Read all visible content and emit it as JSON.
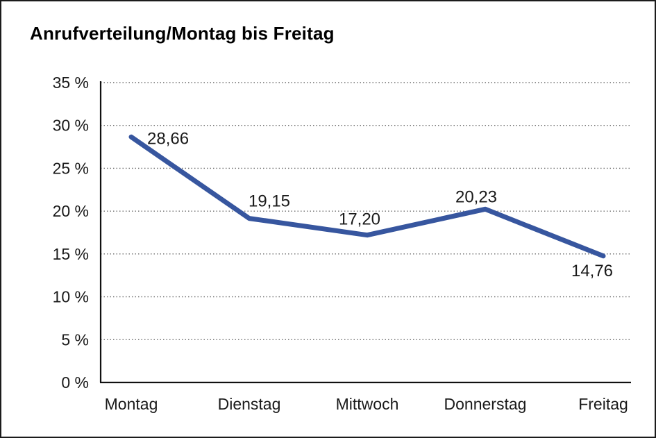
{
  "window": {
    "background": "#ffffff",
    "border_color": "#1b1b1b"
  },
  "chart_data": {
    "type": "line",
    "title": "Anrufverteilung/Montag bis Freitag",
    "categories": [
      "Montag",
      "Dienstag",
      "Mittwoch",
      "Donnerstag",
      "Freitag"
    ],
    "series": [
      {
        "name": "Anrufverteilung",
        "values": [
          28.66,
          19.15,
          17.2,
          20.23,
          14.76
        ]
      }
    ],
    "value_labels": [
      "28,66",
      "19,15",
      "17,20",
      "20,23",
      "14,76"
    ],
    "xlabel": "",
    "ylabel": "",
    "ylim": [
      0,
      35
    ],
    "ytick_step": 5,
    "ytick_labels": [
      "0 %",
      "5 %",
      "10 %",
      "15 %",
      "20 %",
      "25 %",
      "30 %",
      "35 %"
    ],
    "grid": "horizontal-dotted",
    "legend": "none",
    "colors": {
      "line": "#37569F",
      "grid": "#6e6e6e",
      "axis": "#111111",
      "text": "#1a1a1a"
    }
  }
}
